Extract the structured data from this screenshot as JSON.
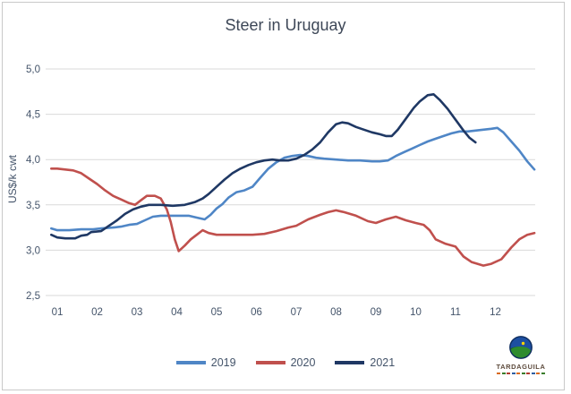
{
  "window": {
    "background": "#ffffff",
    "border_color": "#c9c9c9"
  },
  "colors": {
    "axis_text": "#44546a",
    "title_text": "#3d4757",
    "gridline": "#d9d9d9"
  },
  "logo": {
    "name": "TARDAGUILA",
    "globe_colors": {
      "sky": "#1d4fa1",
      "hill": "#2e8b2e",
      "hill_shadow": "#1c611c",
      "sun": "#ffd400",
      "outline": "#0d2c5e"
    },
    "tagline_segment_colors": [
      "#d86a1f",
      "#3a7d2c",
      "#b03a2e",
      "#2e5fa3",
      "#d86a1f",
      "#3a7d2c",
      "#b03a2e",
      "#2e5fa3",
      "#d86a1f",
      "#3a7d2c"
    ]
  },
  "chart_data": {
    "type": "line",
    "title": "Steer in Uruguay",
    "xlabel": "",
    "ylabel": "US$/k cwt",
    "x_unit": "month (weekly price series per year)",
    "xtick_labels": [
      "01",
      "02",
      "03",
      "04",
      "05",
      "06",
      "07",
      "08",
      "09",
      "10",
      "11",
      "12"
    ],
    "ytick_labels": [
      "2,5",
      "3,0",
      "3,5",
      "4,0",
      "4,5",
      "5,0"
    ],
    "ylim": [
      2.5,
      5.0
    ],
    "xlim": [
      0.7,
      13.05
    ],
    "grid": "horizontal",
    "legend_position": "bottom",
    "series": [
      {
        "name": "2019",
        "color": "#4f86c6",
        "points": [
          [
            0.85,
            3.24
          ],
          [
            1.0,
            3.22
          ],
          [
            1.3,
            3.22
          ],
          [
            1.6,
            3.23
          ],
          [
            1.9,
            3.23
          ],
          [
            2.1,
            3.24
          ],
          [
            2.4,
            3.25
          ],
          [
            2.6,
            3.26
          ],
          [
            2.8,
            3.28
          ],
          [
            3.0,
            3.29
          ],
          [
            3.2,
            3.33
          ],
          [
            3.4,
            3.37
          ],
          [
            3.6,
            3.38
          ],
          [
            3.8,
            3.38
          ],
          [
            4.0,
            3.38
          ],
          [
            4.3,
            3.38
          ],
          [
            4.5,
            3.36
          ],
          [
            4.7,
            3.34
          ],
          [
            4.85,
            3.39
          ],
          [
            5.0,
            3.46
          ],
          [
            5.15,
            3.51
          ],
          [
            5.3,
            3.58
          ],
          [
            5.5,
            3.64
          ],
          [
            5.7,
            3.66
          ],
          [
            5.9,
            3.7
          ],
          [
            6.1,
            3.8
          ],
          [
            6.3,
            3.9
          ],
          [
            6.5,
            3.97
          ],
          [
            6.7,
            4.02
          ],
          [
            6.9,
            4.04
          ],
          [
            7.1,
            4.05
          ],
          [
            7.3,
            4.04
          ],
          [
            7.5,
            4.02
          ],
          [
            7.7,
            4.01
          ],
          [
            8.0,
            4.0
          ],
          [
            8.3,
            3.99
          ],
          [
            8.6,
            3.99
          ],
          [
            8.9,
            3.98
          ],
          [
            9.1,
            3.98
          ],
          [
            9.3,
            3.99
          ],
          [
            9.5,
            4.04
          ],
          [
            9.7,
            4.08
          ],
          [
            9.9,
            4.12
          ],
          [
            10.1,
            4.16
          ],
          [
            10.3,
            4.2
          ],
          [
            10.5,
            4.23
          ],
          [
            10.7,
            4.26
          ],
          [
            10.9,
            4.29
          ],
          [
            11.1,
            4.31
          ],
          [
            11.3,
            4.31
          ],
          [
            11.5,
            4.32
          ],
          [
            11.7,
            4.33
          ],
          [
            11.9,
            4.34
          ],
          [
            12.05,
            4.35
          ],
          [
            12.2,
            4.3
          ],
          [
            12.4,
            4.2
          ],
          [
            12.6,
            4.1
          ],
          [
            12.8,
            3.98
          ],
          [
            12.98,
            3.89
          ]
        ]
      },
      {
        "name": "2020",
        "color": "#c0504d",
        "points": [
          [
            0.85,
            3.9
          ],
          [
            1.0,
            3.9
          ],
          [
            1.2,
            3.89
          ],
          [
            1.4,
            3.88
          ],
          [
            1.6,
            3.85
          ],
          [
            1.8,
            3.79
          ],
          [
            2.0,
            3.73
          ],
          [
            2.2,
            3.66
          ],
          [
            2.4,
            3.6
          ],
          [
            2.6,
            3.56
          ],
          [
            2.8,
            3.52
          ],
          [
            2.95,
            3.5
          ],
          [
            3.1,
            3.55
          ],
          [
            3.25,
            3.6
          ],
          [
            3.45,
            3.6
          ],
          [
            3.6,
            3.57
          ],
          [
            3.75,
            3.45
          ],
          [
            3.85,
            3.31
          ],
          [
            3.95,
            3.12
          ],
          [
            4.05,
            2.99
          ],
          [
            4.2,
            3.05
          ],
          [
            4.35,
            3.12
          ],
          [
            4.5,
            3.17
          ],
          [
            4.65,
            3.22
          ],
          [
            4.8,
            3.19
          ],
          [
            5.0,
            3.17
          ],
          [
            5.3,
            3.17
          ],
          [
            5.6,
            3.17
          ],
          [
            5.9,
            3.17
          ],
          [
            6.2,
            3.18
          ],
          [
            6.5,
            3.21
          ],
          [
            6.8,
            3.25
          ],
          [
            7.0,
            3.27
          ],
          [
            7.3,
            3.34
          ],
          [
            7.6,
            3.39
          ],
          [
            7.8,
            3.42
          ],
          [
            8.0,
            3.44
          ],
          [
            8.2,
            3.42
          ],
          [
            8.5,
            3.38
          ],
          [
            8.8,
            3.32
          ],
          [
            9.0,
            3.3
          ],
          [
            9.25,
            3.34
          ],
          [
            9.5,
            3.37
          ],
          [
            9.75,
            3.33
          ],
          [
            10.0,
            3.3
          ],
          [
            10.2,
            3.28
          ],
          [
            10.35,
            3.22
          ],
          [
            10.5,
            3.12
          ],
          [
            10.75,
            3.07
          ],
          [
            11.0,
            3.04
          ],
          [
            11.2,
            2.93
          ],
          [
            11.4,
            2.87
          ],
          [
            11.7,
            2.83
          ],
          [
            11.9,
            2.85
          ],
          [
            12.15,
            2.9
          ],
          [
            12.4,
            3.03
          ],
          [
            12.6,
            3.12
          ],
          [
            12.8,
            3.17
          ],
          [
            12.98,
            3.19
          ]
        ]
      },
      {
        "name": "2021",
        "color": "#1f3864",
        "points": [
          [
            0.85,
            3.17
          ],
          [
            1.0,
            3.14
          ],
          [
            1.2,
            3.13
          ],
          [
            1.45,
            3.13
          ],
          [
            1.6,
            3.16
          ],
          [
            1.75,
            3.17
          ],
          [
            1.85,
            3.2
          ],
          [
            2.1,
            3.21
          ],
          [
            2.3,
            3.27
          ],
          [
            2.5,
            3.33
          ],
          [
            2.7,
            3.4
          ],
          [
            2.9,
            3.45
          ],
          [
            3.1,
            3.48
          ],
          [
            3.3,
            3.5
          ],
          [
            3.6,
            3.5
          ],
          [
            3.9,
            3.49
          ],
          [
            4.2,
            3.5
          ],
          [
            4.45,
            3.53
          ],
          [
            4.65,
            3.57
          ],
          [
            4.8,
            3.62
          ],
          [
            5.0,
            3.7
          ],
          [
            5.2,
            3.78
          ],
          [
            5.4,
            3.85
          ],
          [
            5.6,
            3.9
          ],
          [
            5.8,
            3.94
          ],
          [
            6.0,
            3.97
          ],
          [
            6.2,
            3.99
          ],
          [
            6.4,
            4.0
          ],
          [
            6.6,
            3.99
          ],
          [
            6.8,
            3.99
          ],
          [
            7.0,
            4.01
          ],
          [
            7.2,
            4.05
          ],
          [
            7.4,
            4.11
          ],
          [
            7.6,
            4.19
          ],
          [
            7.8,
            4.3
          ],
          [
            8.0,
            4.39
          ],
          [
            8.15,
            4.41
          ],
          [
            8.3,
            4.4
          ],
          [
            8.5,
            4.36
          ],
          [
            8.7,
            4.33
          ],
          [
            8.9,
            4.3
          ],
          [
            9.1,
            4.28
          ],
          [
            9.25,
            4.26
          ],
          [
            9.4,
            4.26
          ],
          [
            9.55,
            4.33
          ],
          [
            9.75,
            4.45
          ],
          [
            9.95,
            4.57
          ],
          [
            10.1,
            4.64
          ],
          [
            10.3,
            4.71
          ],
          [
            10.45,
            4.72
          ],
          [
            10.6,
            4.66
          ],
          [
            10.8,
            4.56
          ],
          [
            11.0,
            4.44
          ],
          [
            11.2,
            4.32
          ],
          [
            11.35,
            4.24
          ],
          [
            11.5,
            4.19
          ]
        ]
      }
    ]
  }
}
